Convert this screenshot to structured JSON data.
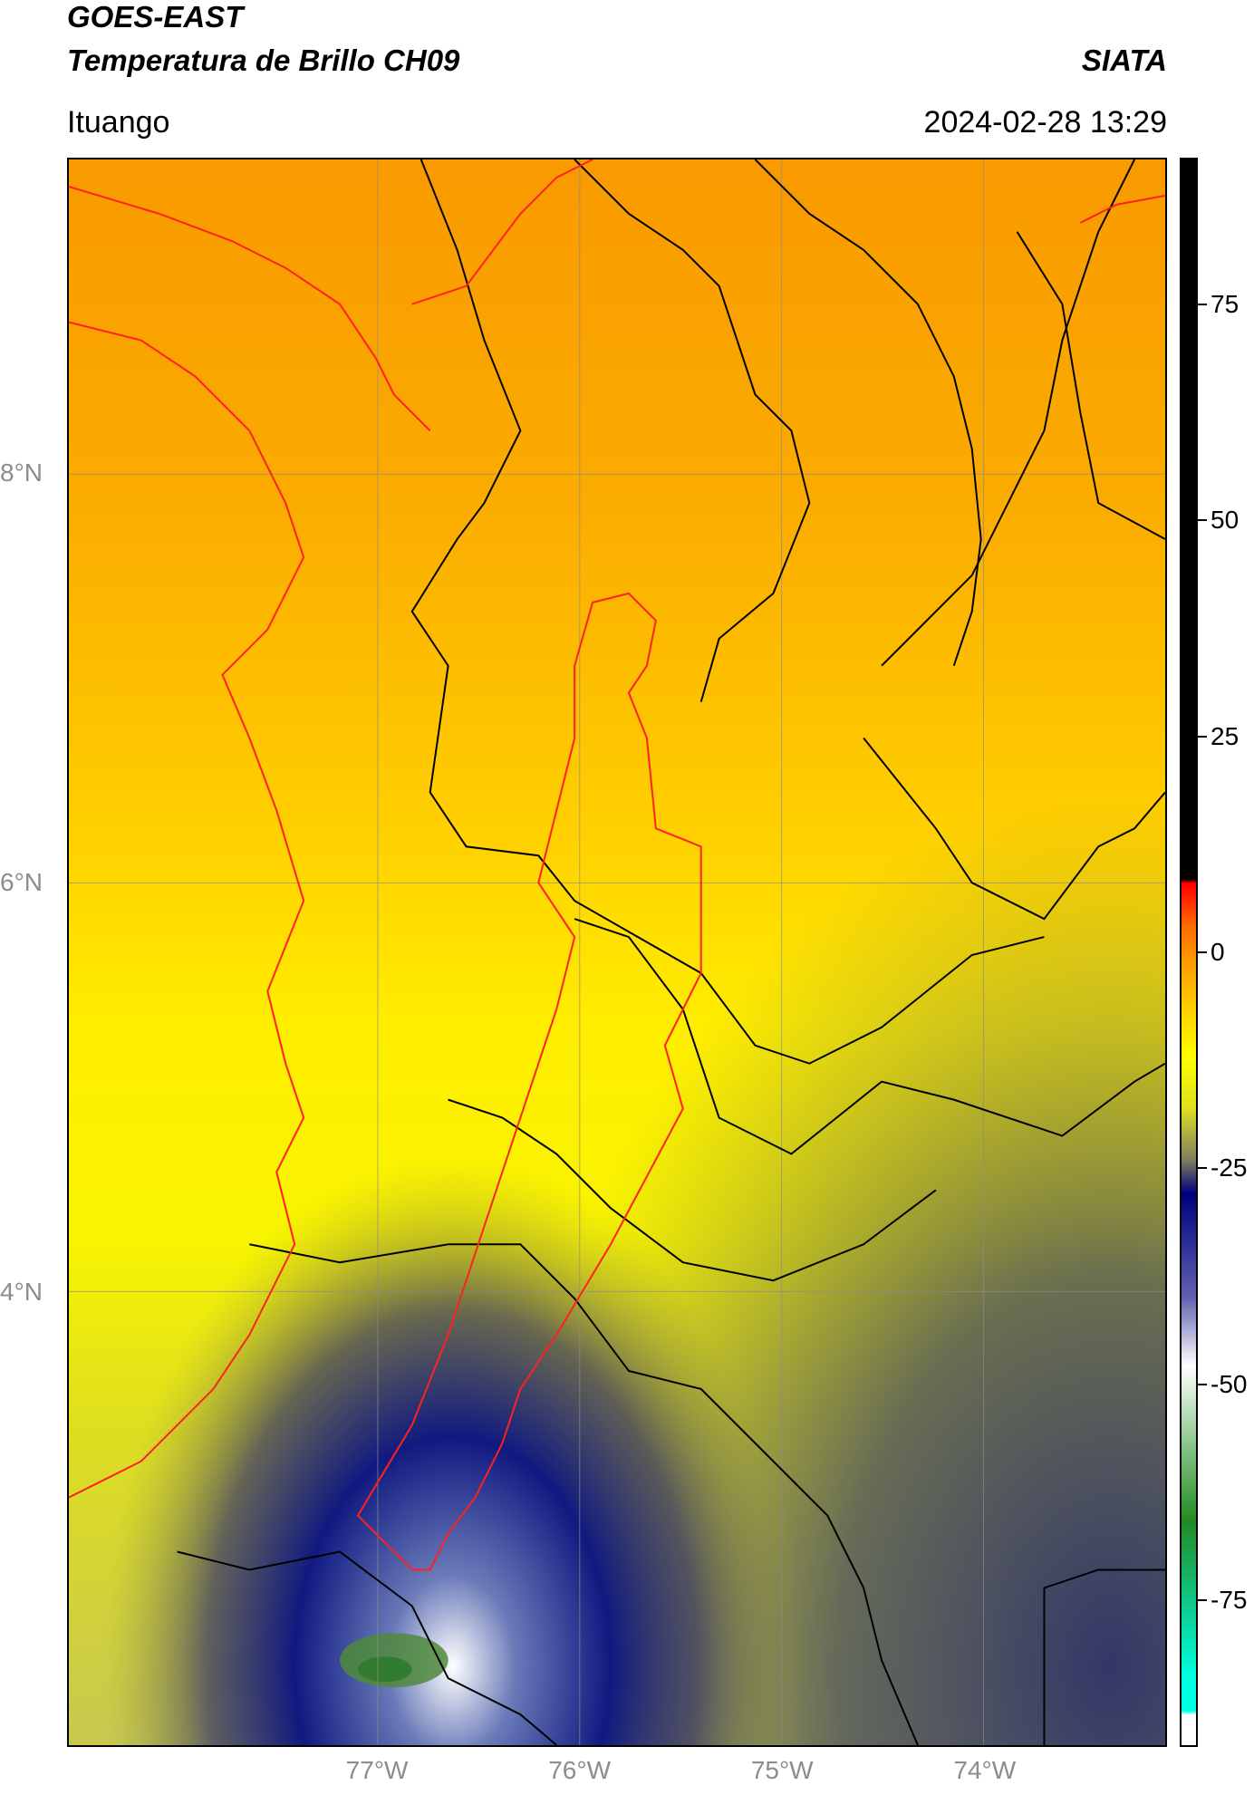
{
  "header": {
    "satellite": "GOES-EAST",
    "product": "Temperatura de Brillo CH09",
    "organization": "SIATA",
    "region": "Ituango",
    "datetime": "2024-02-28 13:29"
  },
  "map": {
    "lat_ticks": [
      {
        "label": "8°N",
        "value": 8
      },
      {
        "label": "6°N",
        "value": 6
      },
      {
        "label": "4°N",
        "value": 4
      }
    ],
    "lon_ticks": [
      {
        "label": "77°W",
        "value": -77
      },
      {
        "label": "76°W",
        "value": -76
      },
      {
        "label": "75°W",
        "value": -75
      },
      {
        "label": "74°W",
        "value": -74
      }
    ],
    "colors": {
      "boundary": "#000000",
      "basin_and_coast": "#ff0000",
      "gridlines": "#8c8c8c"
    }
  },
  "colorbar": {
    "min": -92,
    "max": 92,
    "ticks": [
      75,
      50,
      25,
      0,
      -25,
      -50,
      -75
    ],
    "colors": [
      "#ffffff",
      "#00ffe0",
      "#228b22",
      "#ffffff",
      "#000080",
      "#808080",
      "#ffff00",
      "#ffa500",
      "#ff0000",
      "#000000"
    ]
  }
}
